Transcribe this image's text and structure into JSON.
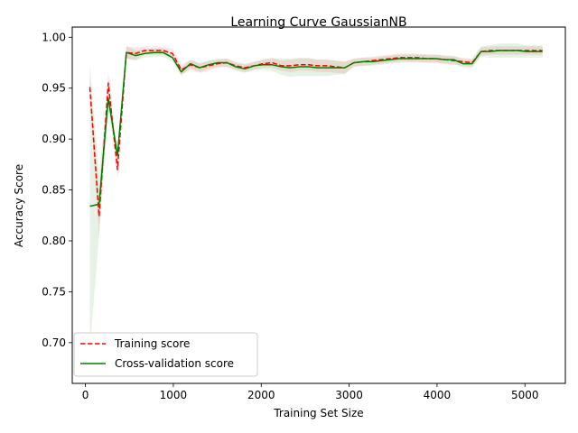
{
  "chart_data": {
    "type": "line",
    "title": "Learning Curve GaussianNB",
    "xlabel": "Training Set Size",
    "ylabel": "Accuracy Score",
    "xlim": [
      -150,
      5460
    ],
    "ylim": [
      0.66,
      1.01
    ],
    "xticks": [
      0,
      1000,
      2000,
      3000,
      4000,
      5000
    ],
    "xtick_labels": [
      "0",
      "1000",
      "2000",
      "3000",
      "4000",
      "5000"
    ],
    "yticks": [
      0.7,
      0.75,
      0.8,
      0.85,
      0.9,
      0.95,
      1.0
    ],
    "ytick_labels": [
      "0.70",
      "0.75",
      "0.80",
      "0.85",
      "0.90",
      "0.95",
      "1.00"
    ],
    "grid": false,
    "legend_position": "lower-left",
    "series": [
      {
        "name": "Training score",
        "color": "#ff0000",
        "dash": true,
        "x": [
          50,
          155,
          260,
          365,
          465,
          570,
          675,
          780,
          885,
          990,
          1090,
          1195,
          1300,
          1400,
          1505,
          1610,
          1710,
          1815,
          1920,
          2020,
          2125,
          2230,
          2330,
          2435,
          2540,
          2640,
          2745,
          2850,
          2950,
          3055,
          3160,
          3260,
          3365,
          3470,
          3570,
          3675,
          3780,
          3880,
          3985,
          4090,
          4190,
          4295,
          4400,
          4500,
          4605,
          4710,
          4810,
          4915,
          5020,
          5120,
          5200
        ],
        "y": [
          0.951,
          0.824,
          0.955,
          0.87,
          0.985,
          0.984,
          0.987,
          0.987,
          0.987,
          0.984,
          0.968,
          0.973,
          0.97,
          0.972,
          0.974,
          0.975,
          0.972,
          0.97,
          0.972,
          0.974,
          0.975,
          0.972,
          0.972,
          0.973,
          0.973,
          0.972,
          0.972,
          0.971,
          0.97,
          0.975,
          0.976,
          0.977,
          0.978,
          0.979,
          0.98,
          0.98,
          0.98,
          0.979,
          0.979,
          0.978,
          0.977,
          0.976,
          0.975,
          0.986,
          0.987,
          0.987,
          0.987,
          0.987,
          0.987,
          0.987,
          0.987
        ],
        "band": [
          0.012,
          0.02,
          0.012,
          0.01,
          0.006,
          0.006,
          0.004,
          0.004,
          0.004,
          0.005,
          0.005,
          0.005,
          0.005,
          0.005,
          0.004,
          0.004,
          0.004,
          0.004,
          0.004,
          0.004,
          0.005,
          0.005,
          0.006,
          0.006,
          0.006,
          0.006,
          0.006,
          0.006,
          0.006,
          0.004,
          0.004,
          0.004,
          0.004,
          0.004,
          0.004,
          0.004,
          0.004,
          0.004,
          0.004,
          0.004,
          0.004,
          0.004,
          0.004,
          0.004,
          0.004,
          0.004,
          0.004,
          0.004,
          0.004,
          0.004,
          0.004
        ]
      },
      {
        "name": "Cross-validation score",
        "color": "#008000",
        "dash": false,
        "x": [
          50,
          155,
          260,
          365,
          465,
          570,
          675,
          780,
          885,
          990,
          1090,
          1195,
          1300,
          1400,
          1505,
          1610,
          1710,
          1815,
          1920,
          2020,
          2125,
          2230,
          2330,
          2435,
          2540,
          2640,
          2745,
          2850,
          2950,
          3055,
          3160,
          3260,
          3365,
          3470,
          3570,
          3675,
          3780,
          3880,
          3985,
          4090,
          4190,
          4295,
          4400,
          4500,
          4605,
          4710,
          4810,
          4915,
          5020,
          5120,
          5200
        ],
        "y": [
          0.834,
          0.836,
          0.94,
          0.884,
          0.985,
          0.982,
          0.984,
          0.985,
          0.985,
          0.98,
          0.966,
          0.974,
          0.97,
          0.973,
          0.975,
          0.975,
          0.971,
          0.969,
          0.972,
          0.973,
          0.973,
          0.971,
          0.97,
          0.971,
          0.971,
          0.97,
          0.97,
          0.97,
          0.97,
          0.975,
          0.976,
          0.976,
          0.977,
          0.978,
          0.979,
          0.979,
          0.979,
          0.979,
          0.979,
          0.978,
          0.978,
          0.974,
          0.974,
          0.986,
          0.986,
          0.987,
          0.987,
          0.987,
          0.986,
          0.986,
          0.986
        ],
        "band": [
          0.14,
          0.03,
          0.012,
          0.008,
          0.006,
          0.005,
          0.004,
          0.004,
          0.004,
          0.004,
          0.004,
          0.004,
          0.004,
          0.004,
          0.004,
          0.004,
          0.004,
          0.004,
          0.004,
          0.005,
          0.006,
          0.008,
          0.009,
          0.009,
          0.009,
          0.008,
          0.008,
          0.007,
          0.006,
          0.004,
          0.004,
          0.004,
          0.004,
          0.004,
          0.004,
          0.004,
          0.004,
          0.004,
          0.004,
          0.004,
          0.004,
          0.004,
          0.004,
          0.005,
          0.006,
          0.007,
          0.007,
          0.007,
          0.006,
          0.006,
          0.006
        ]
      }
    ]
  }
}
